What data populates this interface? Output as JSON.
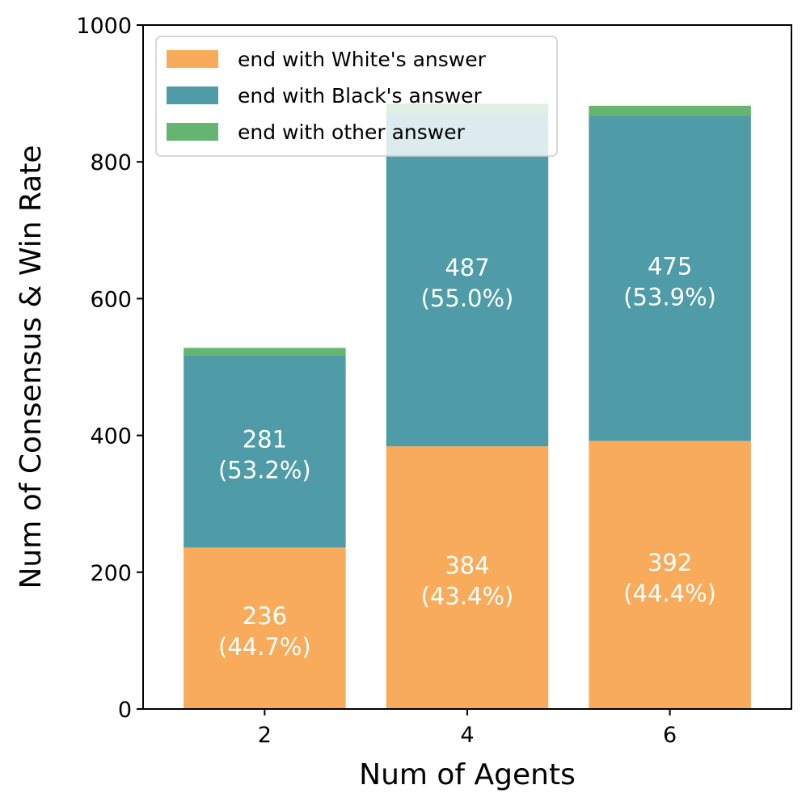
{
  "chart_data": {
    "type": "bar",
    "stacked": true,
    "categories": [
      "2",
      "4",
      "6"
    ],
    "series": [
      {
        "name": "end with White's answer",
        "color": "#f8ab5b",
        "values": [
          236,
          384,
          392
        ]
      },
      {
        "name": "end with Black's answer",
        "color": "#4f9ca8",
        "values": [
          281,
          487,
          475
        ]
      },
      {
        "name": "end with other answer",
        "color": "#65b570",
        "values": [
          11,
          14,
          15
        ]
      }
    ],
    "bar_labels": {
      "end with White's answer": [
        [
          "236",
          "(44.7%)"
        ],
        [
          "384",
          "(43.4%)"
        ],
        [
          "392",
          "(44.4%)"
        ]
      ],
      "end with Black's answer": [
        [
          "281",
          "(53.2%)"
        ],
        [
          "487",
          "(55.0%)"
        ],
        [
          "475",
          "(53.9%)"
        ]
      ]
    },
    "xlabel": "Num of Agents",
    "ylabel": "Num of Consensus & Win Rate",
    "ylim": [
      0,
      1000
    ],
    "yticks": [
      0,
      200,
      400,
      600,
      800,
      1000
    ],
    "grid": false,
    "legend": "top-left"
  }
}
